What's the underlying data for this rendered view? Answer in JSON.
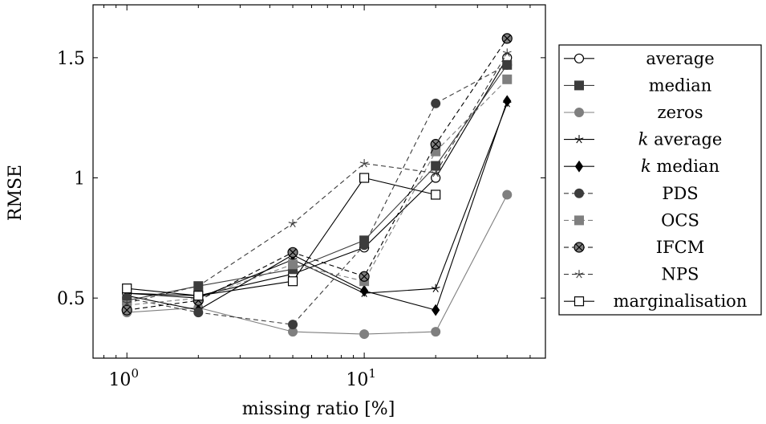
{
  "chart_data": {
    "type": "line",
    "xlabel": "missing ratio [%]",
    "ylabel": "RMSE",
    "xscale": "log",
    "xlim": [
      0.72,
      58
    ],
    "ylim": [
      0.25,
      1.72
    ],
    "x_ticks": [
      {
        "value": 1,
        "base": "10",
        "exp": "0"
      },
      {
        "value": 10,
        "base": "10",
        "exp": "1"
      }
    ],
    "y_ticks": [
      {
        "value": 0.5,
        "label": "0.5"
      },
      {
        "value": 1.0,
        "label": "1"
      },
      {
        "value": 1.5,
        "label": "1.5"
      }
    ],
    "grid": false,
    "legend_position": "right, outside plot",
    "x": [
      1,
      2,
      5,
      10,
      20,
      40
    ],
    "series": [
      {
        "name": "average",
        "name_prefix": "",
        "marker": "circle-open",
        "dash": "solid",
        "color": "#000000",
        "fill": "#ffffff",
        "values": [
          0.52,
          0.51,
          0.6,
          0.71,
          1.0,
          1.5
        ]
      },
      {
        "name": "median",
        "name_prefix": "",
        "marker": "square",
        "dash": "solid",
        "color": "#3c3c3c",
        "fill": "#3c3c3c",
        "values": [
          0.49,
          0.55,
          0.62,
          0.74,
          1.05,
          1.47
        ]
      },
      {
        "name": "zeros",
        "name_prefix": "",
        "marker": "circle",
        "dash": "solid",
        "color": "#7f7f7f",
        "fill": "#7f7f7f",
        "values": [
          0.44,
          0.46,
          0.36,
          0.35,
          0.36,
          0.93
        ]
      },
      {
        "name": " average",
        "name_prefix": "k",
        "marker": "star",
        "dash": "solid",
        "color": "#000000",
        "fill": "#000000",
        "values": [
          0.52,
          0.5,
          0.66,
          0.52,
          0.54,
          1.31
        ]
      },
      {
        "name": " median",
        "name_prefix": "k",
        "marker": "diamond",
        "dash": "solid",
        "color": "#000000",
        "fill": "#000000",
        "values": [
          0.51,
          0.45,
          0.68,
          0.53,
          0.45,
          1.32
        ]
      },
      {
        "name": "PDS",
        "name_prefix": "",
        "marker": "circle",
        "dash": "dashed",
        "color": "#3c3c3c",
        "fill": "#3c3c3c",
        "values": [
          0.5,
          0.44,
          0.39,
          0.72,
          1.31,
          1.47
        ]
      },
      {
        "name": "OCS",
        "name_prefix": "",
        "marker": "square",
        "dash": "dashed",
        "color": "#7f7f7f",
        "fill": "#7f7f7f",
        "values": [
          0.47,
          0.5,
          0.64,
          0.57,
          1.11,
          1.41
        ]
      },
      {
        "name": "IFCM",
        "name_prefix": "",
        "marker": "circle-cross",
        "dash": "dashed",
        "color": "#000000",
        "fill": "#7f7f7f",
        "values": [
          0.45,
          0.49,
          0.69,
          0.59,
          1.14,
          1.58
        ]
      },
      {
        "name": "NPS",
        "name_prefix": "",
        "marker": "star",
        "dash": "dashed",
        "color": "#3c3c3c",
        "fill": "#3c3c3c",
        "values": [
          0.48,
          0.55,
          0.81,
          1.06,
          1.02,
          1.52
        ]
      },
      {
        "name": "marginalisation",
        "name_prefix": "",
        "marker": "square-open",
        "dash": "solid",
        "color": "#000000",
        "fill": "#ffffff",
        "values": [
          0.54,
          0.51,
          0.57,
          1.0,
          0.93,
          null
        ]
      }
    ]
  }
}
